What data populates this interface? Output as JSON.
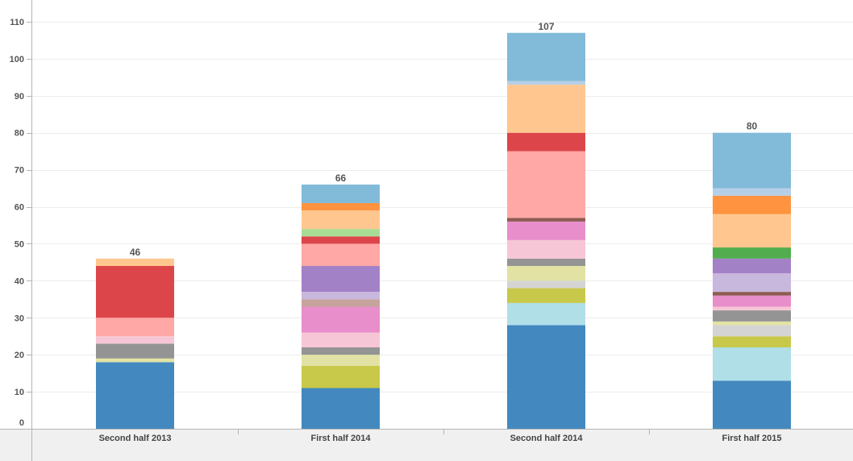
{
  "chart_data": {
    "type": "bar",
    "stacked": true,
    "title": "",
    "xlabel": "",
    "ylabel": "",
    "ylim": [
      0,
      110
    ],
    "y_ticks": [
      0,
      10,
      20,
      30,
      40,
      50,
      60,
      70,
      80,
      90,
      100,
      110
    ],
    "grid": true,
    "legend": "none",
    "categories": [
      "Second half 2013",
      "First half 2014",
      "Second half 2014",
      "First half 2015"
    ],
    "totals": [
      46,
      66,
      107,
      80
    ],
    "series": [
      {
        "color": "#4389bf",
        "values": [
          18,
          11,
          28,
          13
        ]
      },
      {
        "color": "#b0dfe8",
        "values": [
          0,
          0,
          6,
          9
        ]
      },
      {
        "color": "#c8c84a",
        "values": [
          0,
          6,
          4,
          3
        ]
      },
      {
        "color": "#d4d4d4",
        "values": [
          0,
          0,
          2,
          3
        ]
      },
      {
        "color": "#e2e2a4",
        "values": [
          1,
          3,
          4,
          1
        ]
      },
      {
        "color": "#949494",
        "values": [
          4,
          2,
          2,
          3
        ]
      },
      {
        "color": "#f7c6d6",
        "values": [
          2,
          4,
          5,
          1
        ]
      },
      {
        "color": "#e78ecb",
        "values": [
          0,
          7,
          5,
          3
        ]
      },
      {
        "color": "#8e5b52",
        "values": [
          0,
          0,
          1,
          1
        ]
      },
      {
        "color": "#c6a49b",
        "values": [
          0,
          2,
          0,
          0
        ]
      },
      {
        "color": "#c9b8dd",
        "values": [
          0,
          2,
          0,
          5
        ]
      },
      {
        "color": "#a381c6",
        "values": [
          0,
          7,
          0,
          4
        ]
      },
      {
        "color": "#51ad4e",
        "values": [
          0,
          0,
          0,
          3
        ]
      },
      {
        "color": "#ffa8a6",
        "values": [
          5,
          6,
          18,
          0
        ]
      },
      {
        "color": "#dc464a",
        "values": [
          14,
          2,
          5,
          0
        ]
      },
      {
        "color": "#a8dc95",
        "values": [
          0,
          2,
          0,
          0
        ]
      },
      {
        "color": "#ffc78f",
        "values": [
          2,
          5,
          13,
          9
        ]
      },
      {
        "color": "#ff933f",
        "values": [
          0,
          2,
          0,
          5
        ]
      },
      {
        "color": "#b6cfe8",
        "values": [
          0,
          0,
          1,
          2
        ]
      },
      {
        "color": "#82bad9",
        "values": [
          0,
          5,
          13,
          15
        ]
      }
    ]
  }
}
